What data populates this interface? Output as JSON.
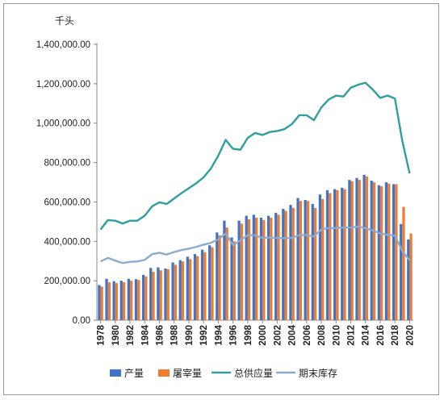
{
  "chart_data": {
    "type": "bar",
    "unit_label": "千头",
    "years": [
      1978,
      1979,
      1980,
      1981,
      1982,
      1983,
      1984,
      1985,
      1986,
      1987,
      1988,
      1989,
      1990,
      1991,
      1992,
      1993,
      1994,
      1995,
      1996,
      1997,
      1998,
      1999,
      2000,
      2001,
      2002,
      2003,
      2004,
      2005,
      2006,
      2007,
      2008,
      2009,
      2010,
      2011,
      2012,
      2013,
      2014,
      2015,
      2016,
      2017,
      2018,
      2019,
      2020
    ],
    "x_tick_labels": [
      "1978",
      "1980",
      "1982",
      "1984",
      "1986",
      "1988",
      "1990",
      "1992",
      "1994",
      "1996",
      "1998",
      "2000",
      "2002",
      "2004",
      "2006",
      "2008",
      "2010",
      "2012",
      "2014",
      "2016",
      "2018",
      "2020"
    ],
    "y_tick_labels": [
      "0.00",
      "200,000.00",
      "400,000.00",
      "600,000.00",
      "800,000.00",
      "1,000,000.00",
      "1,200,000.00",
      "1,400,000.00"
    ],
    "ylim": [
      0,
      1400000
    ],
    "grid": false,
    "legend_position": "bottom",
    "series": [
      {
        "name": "产量",
        "kind": "bar",
        "color": "#4472c4",
        "values": [
          178000,
          210000,
          198000,
          200000,
          210000,
          208000,
          230000,
          265000,
          268000,
          262000,
          293000,
          305000,
          322000,
          336000,
          358000,
          380000,
          445000,
          505000,
          420000,
          505000,
          530000,
          535000,
          520000,
          530000,
          545000,
          565000,
          585000,
          620000,
          610000,
          590000,
          638000,
          660000,
          665000,
          672000,
          712000,
          722000,
          738000,
          708000,
          685000,
          700000,
          690000,
          488000,
          410000
        ]
      },
      {
        "name": "屠宰量",
        "kind": "bar",
        "color": "#ed7d31",
        "values": [
          170000,
          192000,
          188000,
          193000,
          200000,
          204000,
          222000,
          245000,
          253000,
          258000,
          281000,
          298000,
          310000,
          325000,
          345000,
          370000,
          430000,
          470000,
          400000,
          490000,
          512000,
          520000,
          508000,
          520000,
          535000,
          555000,
          570000,
          605000,
          605000,
          570000,
          615000,
          645000,
          660000,
          665000,
          705000,
          712000,
          730000,
          700000,
          680000,
          693000,
          690000,
          575000,
          440000
        ]
      },
      {
        "name": "总供应量",
        "kind": "line",
        "color": "#2e9ea0",
        "values": [
          460000,
          508000,
          505000,
          490000,
          505000,
          505000,
          530000,
          578000,
          598000,
          590000,
          618000,
          645000,
          670000,
          695000,
          725000,
          770000,
          835000,
          915000,
          870000,
          865000,
          925000,
          950000,
          940000,
          955000,
          960000,
          970000,
          995000,
          1040000,
          1040000,
          1015000,
          1080000,
          1120000,
          1140000,
          1135000,
          1180000,
          1195000,
          1205000,
          1170000,
          1128000,
          1140000,
          1125000,
          910000,
          745000
        ]
      },
      {
        "name": "期末库存",
        "kind": "line",
        "color": "#8aabd0",
        "values": [
          298000,
          316000,
          302000,
          290000,
          296000,
          298000,
          306000,
          335000,
          342000,
          333000,
          346000,
          356000,
          363000,
          372000,
          383000,
          393000,
          410000,
          440000,
          380000,
          405000,
          432000,
          430000,
          418000,
          420000,
          418000,
          416000,
          418000,
          432000,
          432000,
          425000,
          460000,
          468000,
          468000,
          470000,
          470000,
          475000,
          467000,
          455000,
          440000,
          433000,
          430000,
          350000,
          305000
        ]
      }
    ]
  }
}
